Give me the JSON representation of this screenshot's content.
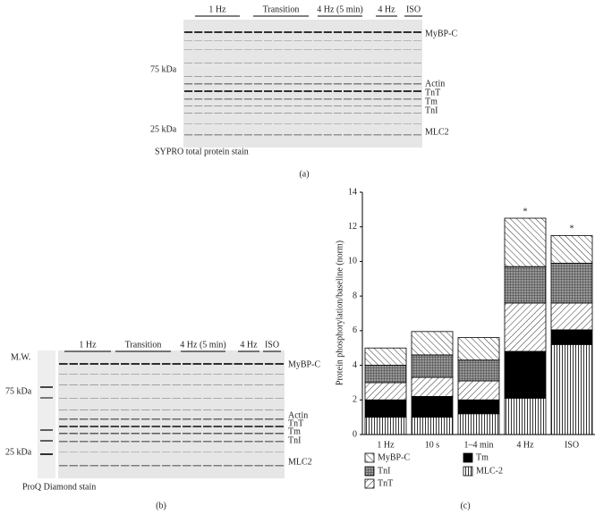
{
  "panel_a": {
    "lane_groups": [
      "1 Hz",
      "Transition",
      "4 Hz (5 min)",
      "4 Hz",
      "ISO"
    ],
    "proteins": [
      "MyBP-C",
      "Actin",
      "TnT",
      "Tm",
      "TnI",
      "MLC2"
    ],
    "markers": [
      "75 kDa",
      "25 kDa"
    ],
    "stain": "SYPRO total protein stain",
    "label": "(a)"
  },
  "panel_b": {
    "lane_groups": [
      "1 Hz",
      "Transition",
      "4 Hz (5 min)",
      "4 Hz",
      "ISO"
    ],
    "proteins": [
      "MyBP-C",
      "Actin",
      "TnT",
      "Tm",
      "TnI",
      "MLC2"
    ],
    "marker_title": "M.W.",
    "markers": [
      "75 kDa",
      "25 kDa"
    ],
    "stain": "ProQ Diamond stain",
    "label": "(b)"
  },
  "chart_data": {
    "type": "bar",
    "stacked": true,
    "label": "(c)",
    "y_label": "Protein phosphorylation/baseline (norm)",
    "categories": [
      "1 Hz",
      "10 s",
      "1–4 min",
      "4 Hz",
      "ISO"
    ],
    "series": [
      {
        "name": "MLC-2",
        "pattern": "vertical",
        "color": "#000000",
        "values": [
          1.0,
          1.0,
          1.2,
          2.1,
          5.2
        ]
      },
      {
        "name": "Tm",
        "pattern": "solid",
        "color": "#000000",
        "values": [
          1.0,
          1.2,
          0.8,
          2.7,
          0.85
        ]
      },
      {
        "name": "TnT",
        "pattern": "slash",
        "color": "#000000",
        "values": [
          1.0,
          1.1,
          1.1,
          2.8,
          1.55
        ]
      },
      {
        "name": "TnI",
        "pattern": "crosshatch",
        "color": "#555555",
        "values": [
          1.0,
          1.3,
          1.2,
          2.1,
          2.3
        ]
      },
      {
        "name": "MyBP-C",
        "pattern": "backslash",
        "color": "#000000",
        "values": [
          1.0,
          1.35,
          1.3,
          2.8,
          1.6
        ]
      }
    ],
    "annotations": [
      null,
      null,
      null,
      "*",
      "*"
    ],
    "ylim": [
      0,
      14
    ],
    "yticks": [
      0,
      2,
      4,
      6,
      8,
      10,
      12,
      14
    ],
    "grid": false
  }
}
